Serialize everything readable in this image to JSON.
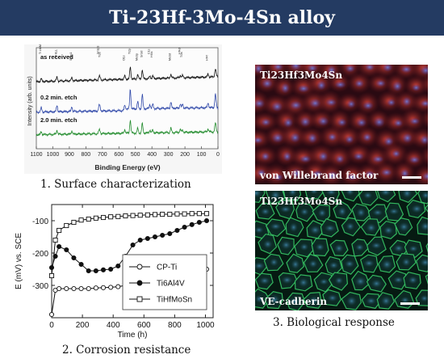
{
  "title": "Ti-23Hf-3Mo-4Sn alloy",
  "xps": {
    "caption": "1.  Surface characterization",
    "ylabel": "Intensity (arb. units)",
    "xlabel": "Binding Energy (eV)",
    "xticks": [
      "1100",
      "1000",
      "900",
      "800",
      "700",
      "600",
      "500",
      "400",
      "300",
      "200",
      "100",
      "0"
    ],
    "traces": [
      {
        "label": "as received",
        "color": "#111111"
      },
      {
        "label": "0.2 min. etch",
        "color": "#2d46a8"
      },
      {
        "label": "2.0 min. etch",
        "color": "#1f8a2a"
      }
    ],
    "peak_labels": [
      "Ti LMM",
      "O KLL",
      "Sn3p1",
      "Sn3p3",
      "Ti2s",
      "O1s",
      "Ti2p",
      "Sn3d",
      "Mo3p",
      "C1s",
      "Hf4s",
      "Mo3d",
      "Hf4d",
      "Ti3s",
      "Hf4f"
    ]
  },
  "corrosion": {
    "caption": "2. Corrosion resistance",
    "chart_data": {
      "type": "line",
      "xlabel": "Time (h)",
      "ylabel": "E (mV) vs. SCE",
      "xlim": [
        0,
        1050
      ],
      "ylim": [
        -400,
        -50
      ],
      "xticks": [
        "0",
        "200",
        "400",
        "600",
        "800",
        "1000"
      ],
      "yticks": [
        "-100",
        "-200",
        "-300"
      ],
      "legend_position": "center-right",
      "series": [
        {
          "name": "CP-Ti",
          "marker": "open-circle",
          "x": [
            0,
            24,
            48,
            96,
            144,
            192,
            240,
            288,
            336,
            384,
            432,
            480,
            528,
            576,
            624,
            672,
            720,
            768,
            816,
            864,
            912,
            960,
            1008
          ],
          "y": [
            -390,
            -315,
            -310,
            -310,
            -310,
            -310,
            -310,
            -308,
            -307,
            -306,
            -304,
            -300,
            -298,
            -295,
            -292,
            -290,
            -285,
            -280,
            -272,
            -266,
            -258,
            -252,
            -250
          ]
        },
        {
          "name": "Ti6Al4V",
          "marker": "filled-circle",
          "x": [
            0,
            24,
            48,
            96,
            144,
            192,
            240,
            288,
            336,
            384,
            432,
            480,
            528,
            576,
            624,
            672,
            720,
            768,
            816,
            864,
            912,
            960,
            1008
          ],
          "y": [
            -245,
            -210,
            -180,
            -190,
            -215,
            -235,
            -255,
            -255,
            -252,
            -250,
            -240,
            -210,
            -175,
            -160,
            -155,
            -150,
            -145,
            -140,
            -130,
            -120,
            -112,
            -105,
            -100
          ]
        },
        {
          "name": "TiHfMoSn",
          "marker": "open-square",
          "x": [
            0,
            24,
            48,
            96,
            144,
            192,
            240,
            288,
            336,
            384,
            432,
            480,
            528,
            576,
            624,
            672,
            720,
            768,
            816,
            864,
            912,
            960,
            1008
          ],
          "y": [
            -270,
            -160,
            -130,
            -115,
            -105,
            -98,
            -95,
            -92,
            -90,
            -88,
            -87,
            -85,
            -84,
            -83,
            -82,
            -81,
            -80,
            -80,
            -79,
            -79,
            -78,
            -78,
            -78
          ]
        }
      ]
    }
  },
  "bio": {
    "caption": "3. Biological response",
    "top": {
      "sample": "Ti23Hf3Mo4Sn",
      "stain": "von Willebrand factor"
    },
    "bottom": {
      "sample": "Ti23Hf3Mo4Sn",
      "stain": "VE-cadherin"
    }
  }
}
